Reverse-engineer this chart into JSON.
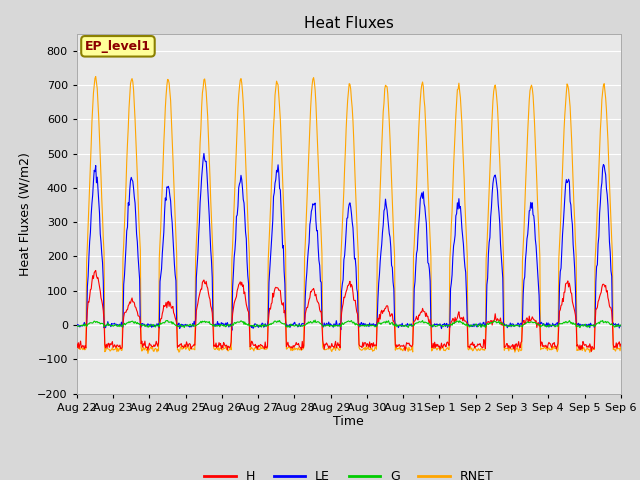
{
  "title": "Heat Fluxes",
  "ylabel": "Heat Fluxes (W/m2)",
  "xlabel": "Time",
  "ylim": [
    -200,
    850
  ],
  "yticks": [
    -200,
    -100,
    0,
    100,
    200,
    300,
    400,
    500,
    600,
    700,
    800
  ],
  "n_days": 15,
  "colors": {
    "H": "#ff0000",
    "LE": "#0000ff",
    "G": "#00cc00",
    "RNET": "#ffa500"
  },
  "line_width": 0.8,
  "fig_bg_color": "#d8d8d8",
  "plot_bg": "#e8e8e8",
  "annotation_text": "EP_level1",
  "annotation_box_color": "#ffff99",
  "annotation_border_color": "#8B8000",
  "title_fontsize": 11,
  "axis_label_fontsize": 9,
  "tick_fontsize": 8,
  "legend_fontsize": 9,
  "tick_labels": [
    "Aug 22",
    "Aug 23",
    "Aug 24",
    "Aug 25",
    "Aug 26",
    "Aug 27",
    "Aug 28",
    "Aug 29",
    "Aug 30",
    "Aug 31",
    "Sep 1",
    "Sep 2",
    "Sep 3",
    "Sep 4",
    "Sep 5",
    "Sep 6"
  ]
}
